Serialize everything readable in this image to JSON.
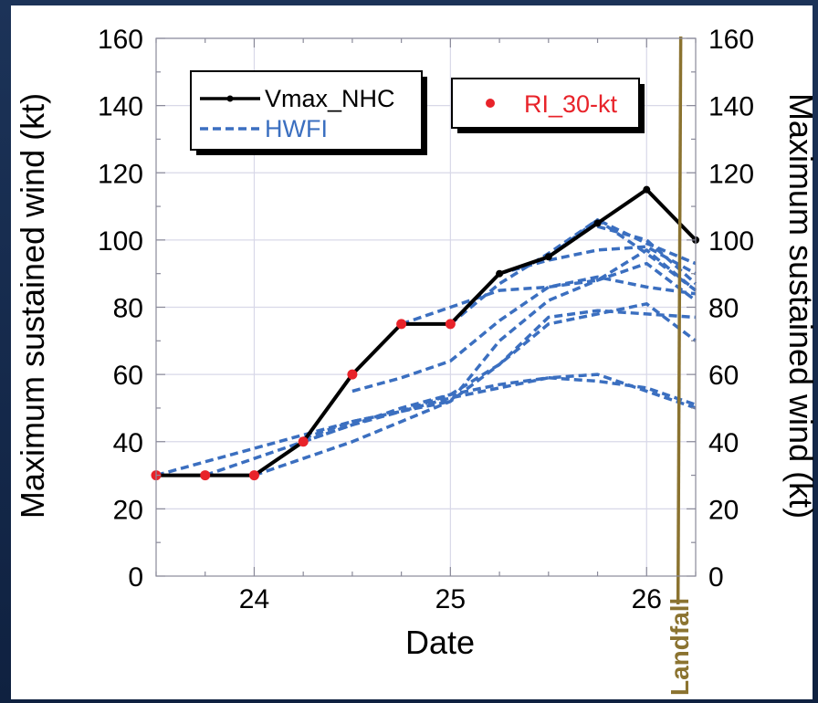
{
  "chart_data": {
    "type": "line",
    "xlabel": "Date",
    "ylabel": "Maximum sustained wind (kt)",
    "ylabel_right": "Maximum sustained wind  (kt)",
    "xlim": [
      23.5,
      26.25
    ],
    "ylim": [
      0,
      160
    ],
    "x_ticks": [
      24,
      25,
      26
    ],
    "y_ticks": [
      0,
      20,
      40,
      60,
      80,
      100,
      120,
      140,
      160
    ],
    "x_tick_labels": [
      "24",
      "25",
      "26"
    ],
    "y_tick_labels": [
      "0",
      "20",
      "40",
      "60",
      "80",
      "100",
      "120",
      "140",
      "160"
    ],
    "grid": true,
    "legend": [
      {
        "label": "Vmax_NHC",
        "style": "solid-black-dot",
        "placement": "top-left"
      },
      {
        "label": "HWFI",
        "style": "dashed-blue",
        "placement": "top-left"
      },
      {
        "label": "RI_30-kt",
        "style": "red-dot",
        "placement": "top-right"
      }
    ],
    "landfall": {
      "x": 26.16,
      "label": "Landfall",
      "color": "#8b7330"
    },
    "colors": {
      "nhc": "#000000",
      "hwfi": "#3b6fc0",
      "ri": "#e8232a"
    },
    "series": [
      {
        "name": "Vmax_NHC",
        "x": [
          23.5,
          23.75,
          24.0,
          24.25,
          24.5,
          24.75,
          25.0,
          25.25,
          25.5,
          25.75,
          26.0,
          26.25
        ],
        "values": [
          30,
          30,
          30,
          40,
          60,
          75,
          75,
          90,
          95,
          105,
          115,
          100
        ]
      },
      {
        "name": "RI_30-kt",
        "x": [
          23.5,
          23.75,
          24.0,
          24.25,
          24.5,
          24.75,
          25.0
        ],
        "values": [
          30,
          30,
          30,
          40,
          60,
          75,
          75
        ]
      }
    ],
    "hwfi_tracks": [
      {
        "x": [
          23.5,
          23.75,
          24.0,
          24.25,
          24.5,
          24.75,
          25.0,
          25.25,
          25.5,
          25.75,
          26.0,
          26.25
        ],
        "values": [
          30,
          34,
          38,
          42,
          46,
          49,
          53,
          56,
          59,
          60,
          55,
          50
        ]
      },
      {
        "x": [
          23.75,
          24.0,
          24.25,
          24.5,
          24.75,
          25.0,
          25.25,
          25.5,
          25.75,
          26.0,
          26.25
        ],
        "values": [
          30,
          35,
          40,
          45,
          50,
          54,
          57,
          59,
          58,
          56,
          51
        ]
      },
      {
        "x": [
          24.0,
          24.25,
          24.5,
          24.75,
          25.0,
          25.25,
          25.5,
          25.75,
          26.0,
          26.25
        ],
        "values": [
          30,
          35,
          40,
          46,
          52,
          63,
          77,
          79,
          78,
          77
        ]
      },
      {
        "x": [
          24.25,
          24.5,
          24.75,
          25.0,
          25.25,
          25.5,
          25.75,
          26.0,
          26.25
        ],
        "values": [
          40,
          45,
          49,
          54,
          63,
          75,
          78,
          81,
          70
        ]
      },
      {
        "x": [
          24.25,
          24.5,
          24.75,
          25.0,
          25.25,
          25.5,
          25.75,
          26.0,
          26.25
        ],
        "values": [
          41,
          46,
          49,
          52,
          70,
          82,
          88,
          93,
          82
        ]
      },
      {
        "x": [
          24.5,
          24.75,
          25.0,
          25.25,
          25.5,
          25.75,
          26.0,
          26.25
        ],
        "values": [
          55,
          59,
          64,
          76,
          86,
          89,
          86,
          84
        ]
      },
      {
        "x": [
          24.75,
          25.0,
          25.25,
          25.5,
          25.75,
          26.0,
          26.25
        ],
        "values": [
          75,
          80,
          85,
          86,
          88,
          97,
          85
        ]
      },
      {
        "x": [
          25.0,
          25.25,
          25.5,
          25.75,
          26.0,
          26.25
        ],
        "values": [
          75,
          87,
          96,
          106,
          96,
          85
        ]
      },
      {
        "x": [
          25.25,
          25.5,
          25.75,
          26.0,
          26.25
        ],
        "values": [
          90,
          94,
          97,
          98,
          90
        ]
      },
      {
        "x": [
          25.5,
          25.75,
          26.0,
          26.25
        ],
        "values": [
          95,
          106,
          99,
          93
        ]
      },
      {
        "x": [
          25.75,
          26.0,
          26.25
        ],
        "values": [
          104,
          100,
          87
        ]
      }
    ]
  }
}
